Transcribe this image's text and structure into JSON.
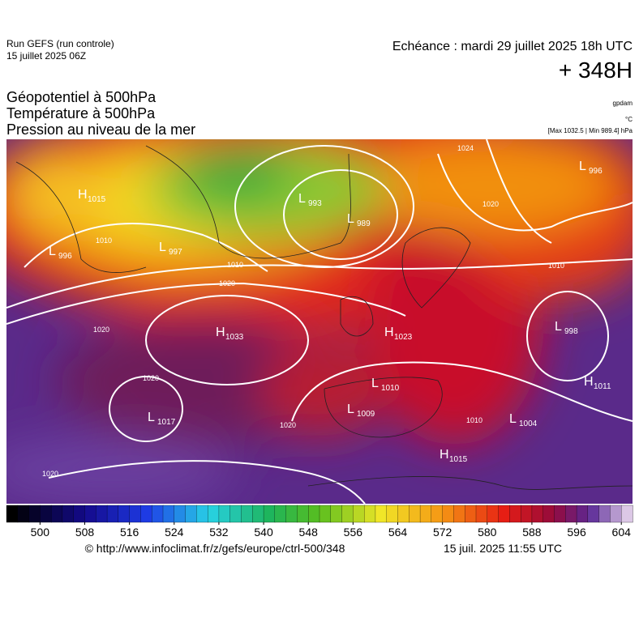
{
  "header": {
    "run": "Run GEFS (run controle)",
    "date": "15 juillet 2025 06Z",
    "echeance": "Echéance : mardi 29 juillet 2025 18h UTC",
    "lead": "+ 348H"
  },
  "titles": [
    "Géopotentiel à 500hPa",
    "Température à 500hPa",
    "Pression au niveau de la mer"
  ],
  "units": {
    "geopotential": "gpdam",
    "temperature": "°C",
    "pressure": "[Max 1032.5 | Min 989.4] hPa"
  },
  "colorbar": {
    "range": [
      494,
      606
    ],
    "ticks": [
      500,
      508,
      516,
      524,
      532,
      540,
      548,
      556,
      564,
      572,
      580,
      588,
      596,
      604
    ]
  },
  "centers": [
    {
      "letter": "H",
      "value": "1015"
    },
    {
      "letter": "L",
      "value": "996"
    },
    {
      "letter": "L",
      "value": "997"
    },
    {
      "letter": "L",
      "value": "993"
    },
    {
      "letter": "L",
      "value": "989"
    },
    {
      "letter": "H",
      "value": "1033"
    },
    {
      "letter": "H",
      "value": "1023"
    },
    {
      "letter": "L",
      "value": "1010"
    },
    {
      "letter": "L",
      "value": "1009"
    },
    {
      "letter": "L",
      "value": "1017"
    },
    {
      "letter": "H",
      "value": "1015"
    },
    {
      "letter": "L",
      "value": "1004"
    },
    {
      "letter": "L",
      "value": "998"
    },
    {
      "letter": "H",
      "value": "1011"
    },
    {
      "letter": "L",
      "value": "996"
    }
  ],
  "isobar_labels": [
    "1010",
    "1020",
    "1020",
    "1020",
    "1020",
    "1020",
    "1024",
    "1020",
    "1010",
    "1010",
    "1010"
  ],
  "footer": {
    "url": "© http://www.infoclimat.fr/z/gefs/europe/ctrl-500/348",
    "time": "15 juil. 2025 11:55 UTC"
  }
}
